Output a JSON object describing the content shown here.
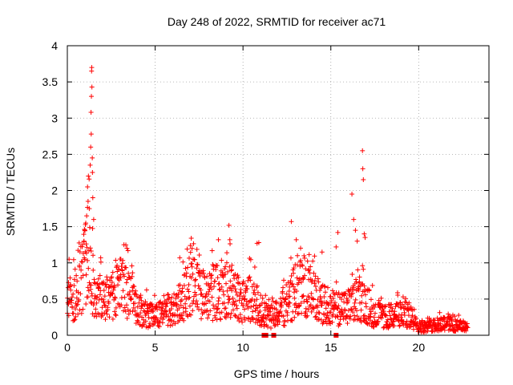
{
  "chart_data": {
    "type": "scatter",
    "title": "Day 248 of 2022, SRMTID for receiver ac71",
    "xlabel": "GPS time / hours",
    "ylabel": "SRMTID / TECUs",
    "xlim": [
      0,
      24
    ],
    "ylim": [
      0,
      4
    ],
    "xticks": [
      0,
      5,
      10,
      15,
      20
    ],
    "yticks": [
      0,
      0.5,
      1,
      1.5,
      2,
      2.5,
      3,
      3.5,
      4
    ],
    "xtick_labels": [
      "0",
      "5",
      "10",
      "15",
      "20"
    ],
    "ytick_labels": [
      "0",
      "0.5",
      "1",
      "1.5",
      "2",
      "2.5",
      "3",
      "3.5",
      "4"
    ],
    "grid": true,
    "marker": "+",
    "color": "#ff0000",
    "x_range_hours": [
      0,
      22.8
    ],
    "envelope": [
      {
        "x": 0.0,
        "y": 0.45
      },
      {
        "x": 0.3,
        "y": 0.55
      },
      {
        "x": 0.6,
        "y": 0.6
      },
      {
        "x": 0.9,
        "y": 0.9
      },
      {
        "x": 1.1,
        "y": 1.2
      },
      {
        "x": 1.3,
        "y": 1.0
      },
      {
        "x": 1.6,
        "y": 0.55
      },
      {
        "x": 2.0,
        "y": 0.5
      },
      {
        "x": 2.5,
        "y": 0.55
      },
      {
        "x": 3.0,
        "y": 0.7
      },
      {
        "x": 3.5,
        "y": 0.55
      },
      {
        "x": 4.0,
        "y": 0.35
      },
      {
        "x": 4.5,
        "y": 0.3
      },
      {
        "x": 5.0,
        "y": 0.28
      },
      {
        "x": 5.5,
        "y": 0.3
      },
      {
        "x": 6.0,
        "y": 0.35
      },
      {
        "x": 6.5,
        "y": 0.5
      },
      {
        "x": 7.0,
        "y": 0.75
      },
      {
        "x": 7.5,
        "y": 0.6
      },
      {
        "x": 8.0,
        "y": 0.55
      },
      {
        "x": 8.5,
        "y": 0.6
      },
      {
        "x": 9.0,
        "y": 0.65
      },
      {
        "x": 9.5,
        "y": 0.6
      },
      {
        "x": 10.0,
        "y": 0.5
      },
      {
        "x": 10.5,
        "y": 0.55
      },
      {
        "x": 11.0,
        "y": 0.35
      },
      {
        "x": 11.5,
        "y": 0.25
      },
      {
        "x": 12.0,
        "y": 0.3
      },
      {
        "x": 12.5,
        "y": 0.4
      },
      {
        "x": 13.0,
        "y": 0.65
      },
      {
        "x": 13.5,
        "y": 0.7
      },
      {
        "x": 14.0,
        "y": 0.55
      },
      {
        "x": 14.5,
        "y": 0.45
      },
      {
        "x": 15.0,
        "y": 0.4
      },
      {
        "x": 15.5,
        "y": 0.35
      },
      {
        "x": 16.0,
        "y": 0.4
      },
      {
        "x": 16.5,
        "y": 0.5
      },
      {
        "x": 17.0,
        "y": 0.45
      },
      {
        "x": 17.5,
        "y": 0.3
      },
      {
        "x": 18.0,
        "y": 0.25
      },
      {
        "x": 18.5,
        "y": 0.28
      },
      {
        "x": 19.0,
        "y": 0.3
      },
      {
        "x": 19.5,
        "y": 0.28
      },
      {
        "x": 20.0,
        "y": 0.12
      },
      {
        "x": 20.5,
        "y": 0.12
      },
      {
        "x": 21.0,
        "y": 0.15
      },
      {
        "x": 21.5,
        "y": 0.18
      },
      {
        "x": 22.0,
        "y": 0.15
      },
      {
        "x": 22.5,
        "y": 0.12
      },
      {
        "x": 22.8,
        "y": 0.12
      }
    ],
    "spikes": [
      {
        "x": 1.1,
        "y": 1.65
      },
      {
        "x": 1.15,
        "y": 2.05
      },
      {
        "x": 1.18,
        "y": 1.85
      },
      {
        "x": 1.2,
        "y": 2.2
      },
      {
        "x": 1.25,
        "y": 1.75
      },
      {
        "x": 1.3,
        "y": 2.35
      },
      {
        "x": 1.33,
        "y": 2.6
      },
      {
        "x": 1.35,
        "y": 3.08
      },
      {
        "x": 1.36,
        "y": 2.78
      },
      {
        "x": 1.37,
        "y": 3.3
      },
      {
        "x": 1.38,
        "y": 3.65
      },
      {
        "x": 1.39,
        "y": 3.7
      },
      {
        "x": 1.4,
        "y": 3.43
      },
      {
        "x": 1.42,
        "y": 2.45
      },
      {
        "x": 1.43,
        "y": 2.25
      },
      {
        "x": 1.45,
        "y": 1.9
      },
      {
        "x": 1.5,
        "y": 1.6
      },
      {
        "x": 1.0,
        "y": 1.45
      },
      {
        "x": 0.95,
        "y": 1.3
      },
      {
        "x": 1.05,
        "y": 1.55
      },
      {
        "x": 16.2,
        "y": 1.95
      },
      {
        "x": 16.3,
        "y": 1.6
      },
      {
        "x": 16.4,
        "y": 1.45
      },
      {
        "x": 16.5,
        "y": 1.3
      },
      {
        "x": 16.8,
        "y": 2.55
      },
      {
        "x": 16.82,
        "y": 2.3
      },
      {
        "x": 16.85,
        "y": 2.15
      },
      {
        "x": 16.9,
        "y": 1.4
      },
      {
        "x": 16.95,
        "y": 1.35
      },
      {
        "x": 15.4,
        "y": 1.42
      },
      {
        "x": 15.3,
        "y": 1.22
      },
      {
        "x": 12.75,
        "y": 1.57
      },
      {
        "x": 9.2,
        "y": 1.52
      },
      {
        "x": 8.6,
        "y": 1.32
      },
      {
        "x": 9.25,
        "y": 1.32
      },
      {
        "x": 10.8,
        "y": 1.27
      },
      {
        "x": 10.9,
        "y": 1.28
      },
      {
        "x": 7.0,
        "y": 1.24
      },
      {
        "x": 7.1,
        "y": 1.2
      },
      {
        "x": 0.1,
        "y": 1.05
      },
      {
        "x": 6.4,
        "y": 1.07
      },
      {
        "x": 13.1,
        "y": 1.1
      },
      {
        "x": 14.5,
        "y": 1.15
      }
    ],
    "zero_markers": [
      11.2,
      11.3,
      11.75,
      15.3
    ]
  }
}
